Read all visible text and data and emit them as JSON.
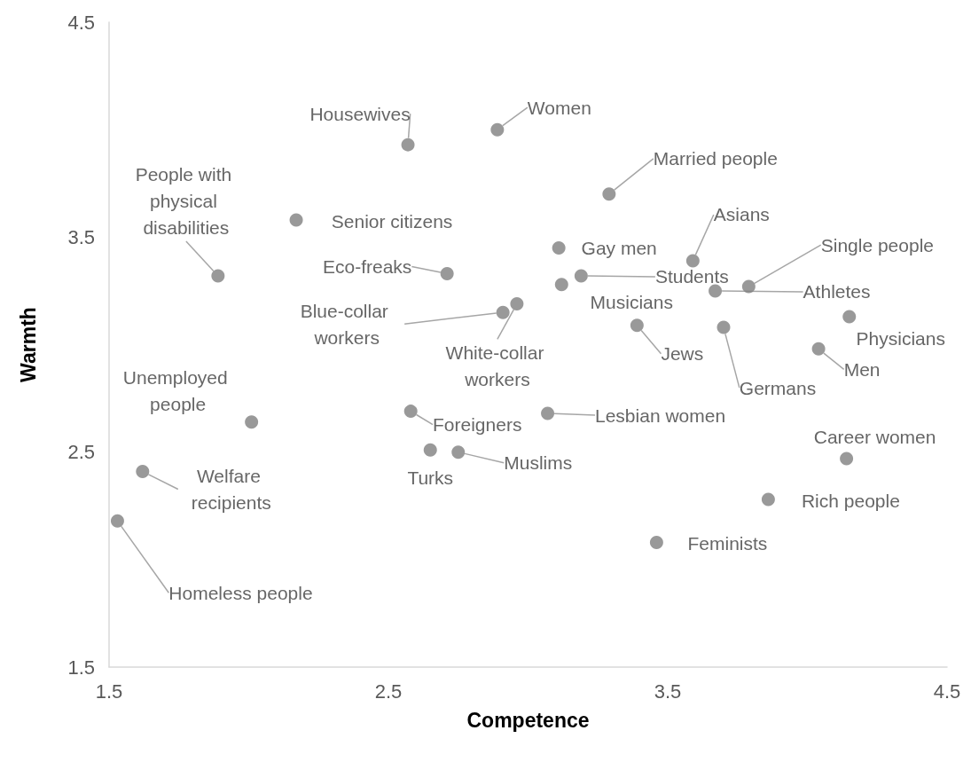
{
  "chart_data": {
    "type": "scatter",
    "xlabel": "Competence",
    "ylabel": "Warmth",
    "xlim": [
      1.5,
      4.5
    ],
    "xticks": [
      1.5,
      2.5,
      3.5,
      4.5
    ],
    "ylim": [
      1.5,
      4.5
    ],
    "yticks": [
      1.5,
      2.5,
      3.5,
      4.5
    ],
    "grid": false,
    "marker": "circle",
    "series": [
      {
        "color": "#808080",
        "x": [
          2.57,
          2.89,
          3.29,
          2.17,
          1.89,
          2.71,
          3.11,
          3.19,
          3.12,
          2.91,
          2.96,
          3.59,
          3.79,
          3.67,
          4.15,
          3.39,
          3.7,
          4.04,
          2.01,
          2.58,
          3.07,
          2.65,
          2.75,
          4.14,
          1.62,
          3.86,
          1.53,
          3.46
        ],
        "values": [
          3.93,
          4.0,
          3.7,
          3.58,
          3.32,
          3.33,
          3.45,
          3.32,
          3.28,
          3.15,
          3.19,
          3.39,
          3.27,
          3.25,
          3.13,
          3.09,
          3.08,
          2.98,
          2.64,
          2.69,
          2.68,
          2.51,
          2.5,
          2.47,
          2.41,
          2.28,
          2.18,
          2.08
        ]
      }
    ],
    "annotations": [
      {
        "text": "Housewives",
        "x": 2.57,
        "y": 3.93
      },
      {
        "text": "Women",
        "x": 2.89,
        "y": 4.0
      },
      {
        "text": "Married people",
        "x": 3.29,
        "y": 3.7
      },
      {
        "text": "Senior citizens",
        "x": 2.17,
        "y": 3.58
      },
      {
        "text": "People with physical disabilities",
        "x": 1.89,
        "y": 3.32
      },
      {
        "text": "Eco-freaks",
        "x": 2.71,
        "y": 3.33
      },
      {
        "text": "Gay men",
        "x": 3.11,
        "y": 3.45
      },
      "Students",
      {
        "text": "Musicians",
        "x": 3.12,
        "y": 3.28
      },
      {
        "text": "Blue-collar workers",
        "x": 2.91,
        "y": 3.15
      },
      {
        "text": "White-collar workers",
        "x": 2.96,
        "y": 3.19
      },
      {
        "text": "Asians",
        "x": 3.59,
        "y": 3.39
      },
      {
        "text": "Single people",
        "x": 3.79,
        "y": 3.27
      },
      "Athletes",
      {
        "text": "Physicians",
        "x": 4.15,
        "y": 3.13
      },
      {
        "text": "Jews",
        "x": 3.39,
        "y": 3.09
      },
      {
        "text": "Germans",
        "x": 3.7,
        "y": 3.08
      },
      {
        "text": "Men",
        "x": 4.04,
        "y": 2.98
      },
      {
        "text": "Unemployed people",
        "x": 2.01,
        "y": 2.64
      },
      {
        "text": "Foreigners",
        "x": 2.58,
        "y": 2.69
      },
      {
        "text": "Lesbian women",
        "x": 3.07,
        "y": 2.68
      },
      {
        "text": "Turks",
        "x": 2.65,
        "y": 2.51
      },
      {
        "text": "Muslims",
        "x": 2.75,
        "y": 2.5
      },
      {
        "text": "Career women",
        "x": 4.14,
        "y": 2.47
      },
      {
        "text": "Welfare recipients",
        "x": 1.62,
        "y": 2.41
      },
      {
        "text": "Rich people",
        "x": 3.86,
        "y": 2.28
      },
      {
        "text": "Homeless people",
        "x": 1.53,
        "y": 2.18
      },
      {
        "text": "Feminists",
        "x": 3.46,
        "y": 2.08
      }
    ]
  }
}
